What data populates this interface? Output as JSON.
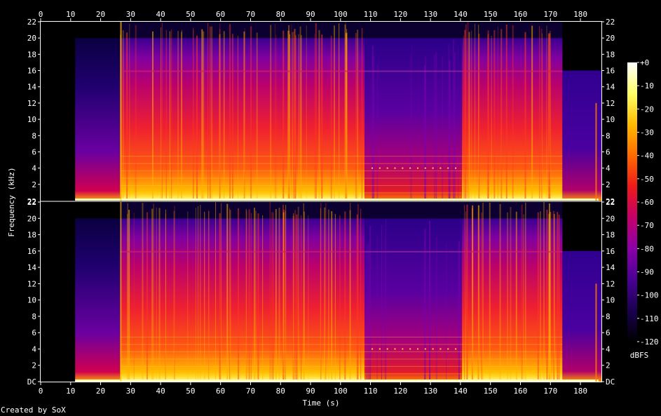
{
  "chart_data": {
    "type": "heatmap",
    "title": "",
    "xlabel": "Time (s)",
    "ylabel": "Frequency (kHz)",
    "xlim": [
      0,
      187
    ],
    "ylim_khz": [
      0,
      22
    ],
    "x_ticks": [
      0,
      10,
      20,
      30,
      40,
      50,
      60,
      70,
      80,
      90,
      100,
      110,
      120,
      130,
      140,
      150,
      160,
      170,
      180
    ],
    "y_tick_labels": [
      "DC",
      "2",
      "4",
      "6",
      "8",
      "10",
      "12",
      "14",
      "16",
      "18",
      "20",
      "22"
    ],
    "channels": 2,
    "colorbar": {
      "label": "dBFS",
      "range": [
        -120,
        0
      ],
      "tick_labels": [
        "+0",
        "-10",
        "-20",
        "-30",
        "-40",
        "-50",
        "-60",
        "-70",
        "-80",
        "-90",
        "-100",
        "-110",
        "-120"
      ],
      "colormap": [
        "#000000",
        "#1a0050",
        "#4a0095",
        "#8a00a8",
        "#c4006a",
        "#ee1a1a",
        "#ff6a00",
        "#ffbb00",
        "#ffff66",
        "#ffffff"
      ]
    },
    "segments": [
      {
        "start_s": 0,
        "end_s": 11.5,
        "level": "silence",
        "cutoff_khz": 0
      },
      {
        "start_s": 11.5,
        "end_s": 26.5,
        "level": "quiet intro",
        "cutoff_khz": 20
      },
      {
        "start_s": 26.5,
        "end_s": 108,
        "level": "loud",
        "cutoff_khz": 20
      },
      {
        "start_s": 108,
        "end_s": 140.5,
        "level": "soft",
        "cutoff_khz": 20
      },
      {
        "start_s": 140.5,
        "end_s": 174,
        "level": "loud",
        "cutoff_khz": 20
      },
      {
        "start_s": 174,
        "end_s": 187,
        "level": "fade out",
        "cutoff_khz": 16
      }
    ]
  },
  "footer": {
    "credit": "Created by SoX"
  }
}
